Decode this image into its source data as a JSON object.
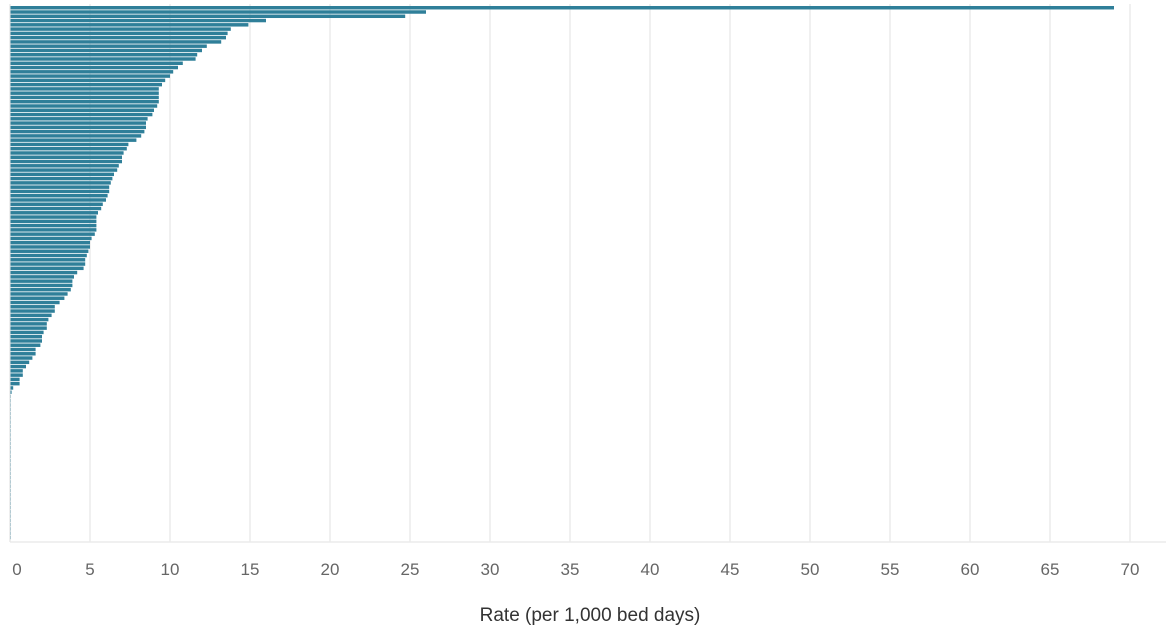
{
  "chart_data": {
    "type": "bar",
    "orientation": "horizontal",
    "sort": "descending",
    "title": "",
    "xlabel": "Rate (per 1,000 bed days)",
    "ylabel": "",
    "xlim": [
      0,
      72
    ],
    "xticks": [
      0,
      5,
      10,
      15,
      20,
      25,
      30,
      35,
      40,
      45,
      50,
      55,
      60,
      65,
      70
    ],
    "grid": "vertical",
    "legend": "none",
    "bar_color": "#2f7f99",
    "values": [
      69.0,
      26.0,
      24.7,
      16.0,
      14.9,
      13.8,
      13.6,
      13.5,
      13.2,
      12.3,
      12.0,
      11.7,
      11.6,
      10.8,
      10.5,
      10.2,
      10.0,
      9.7,
      9.5,
      9.3,
      9.3,
      9.3,
      9.3,
      9.2,
      9.0,
      8.9,
      8.6,
      8.5,
      8.5,
      8.4,
      8.2,
      7.9,
      7.4,
      7.3,
      7.1,
      7.0,
      7.0,
      6.8,
      6.7,
      6.5,
      6.4,
      6.3,
      6.2,
      6.2,
      6.1,
      6.0,
      5.8,
      5.7,
      5.5,
      5.4,
      5.4,
      5.4,
      5.4,
      5.3,
      5.1,
      5.0,
      5.0,
      4.9,
      4.8,
      4.7,
      4.7,
      4.6,
      4.2,
      4.0,
      3.9,
      3.9,
      3.8,
      3.6,
      3.4,
      3.1,
      2.8,
      2.8,
      2.6,
      2.4,
      2.3,
      2.3,
      2.1,
      2.0,
      2.0,
      1.9,
      1.6,
      1.6,
      1.4,
      1.2,
      1.0,
      0.8,
      0.8,
      0.6,
      0.6,
      0.2,
      0.1,
      0.05,
      0.05,
      0.05,
      0.05,
      0.05,
      0.05,
      0.05,
      0.05,
      0.05,
      0.05,
      0.05,
      0.05,
      0.05,
      0.05,
      0.05,
      0.05,
      0.05,
      0.05,
      0.05,
      0.05,
      0.05,
      0.05,
      0.05,
      0.05,
      0.05,
      0.05,
      0.05,
      0.05,
      0.05,
      0.05,
      0.05,
      0.05,
      0.05,
      0.05
    ]
  }
}
